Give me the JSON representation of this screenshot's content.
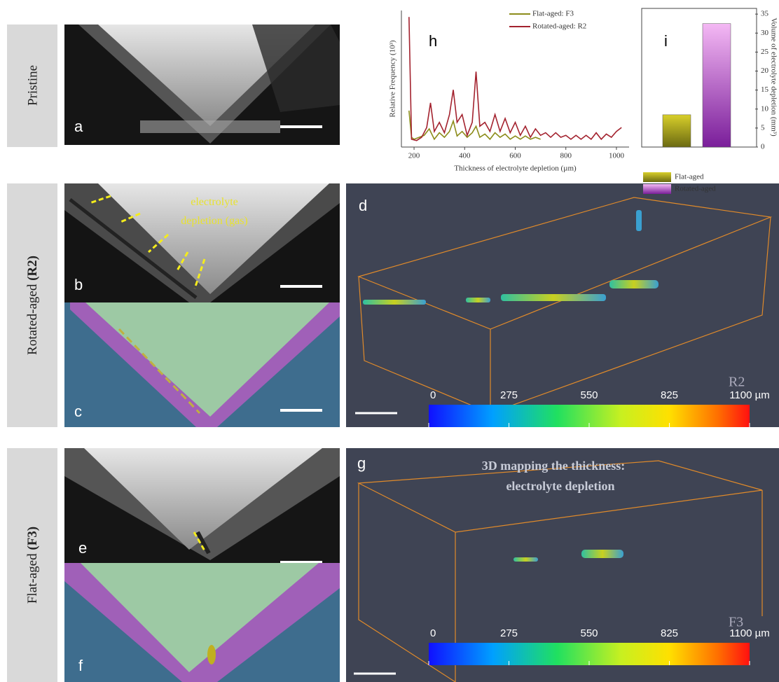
{
  "row_labels": [
    {
      "text": "Pristine"
    },
    {
      "text": "Rotated-aged",
      "tag": "(R2)"
    },
    {
      "text": "Flat-aged",
      "tag": "(F3)"
    }
  ],
  "panels": {
    "a": "a",
    "b": "b",
    "c": "c",
    "d": "d",
    "e": "e",
    "f": "f",
    "g": "g"
  },
  "annotations": {
    "gas": [
      "electrolyte",
      "depletion (gas)"
    ],
    "mapping": [
      "3D mapping the thickness:",
      "electrolyte depletion"
    ],
    "d_sample": "R2",
    "g_sample": "F3"
  },
  "colorbar": {
    "lim": [
      0,
      1100
    ],
    "ticks": [
      0,
      275,
      550,
      825,
      {
        "value": 1100,
        "label": "1100 µm"
      }
    ]
  },
  "chart_data": [
    {
      "type": "line",
      "panel": "h",
      "xlabel": "Thickness of electrolyte depletion (µm)",
      "ylabel": "Relative Frequency (10³)",
      "xlim": [
        150,
        1050
      ],
      "xticks": [
        200,
        400,
        600,
        800,
        1000
      ],
      "ylim": [
        0,
        10.5
      ],
      "legend": "top-right",
      "series": [
        {
          "name": "Flat-aged: F3",
          "color": "#8c8c1a",
          "x": [
            180,
            190,
            200,
            220,
            240,
            260,
            280,
            300,
            320,
            340,
            355,
            370,
            390,
            410,
            430,
            445,
            460,
            480,
            500,
            520,
            540,
            560,
            580,
            600,
            620,
            640,
            660,
            680,
            700
          ],
          "values": [
            2.8,
            0.75,
            0.6,
            0.75,
            0.9,
            1.4,
            0.6,
            1.1,
            0.75,
            1.2,
            2.0,
            0.85,
            1.2,
            0.75,
            1.1,
            1.6,
            0.75,
            1.0,
            0.6,
            1.1,
            0.75,
            1.0,
            0.6,
            0.85,
            0.6,
            0.85,
            0.6,
            0.75,
            0.6
          ]
        },
        {
          "name": "Rotated-aged: R2",
          "color": "#a3222e",
          "x": [
            180,
            190,
            210,
            230,
            250,
            265,
            280,
            300,
            320,
            340,
            355,
            370,
            390,
            410,
            430,
            445,
            460,
            480,
            500,
            520,
            540,
            560,
            580,
            600,
            620,
            640,
            660,
            680,
            700,
            720,
            740,
            760,
            780,
            800,
            820,
            840,
            860,
            880,
            900,
            920,
            940,
            960,
            980,
            1000,
            1020
          ],
          "values": [
            10,
            0.6,
            0.5,
            0.75,
            1.5,
            3.4,
            1.2,
            1.9,
            1.1,
            2.5,
            4.4,
            1.9,
            2.5,
            0.9,
            1.9,
            5.8,
            1.6,
            1.9,
            1.2,
            2.5,
            1.2,
            2.2,
            1.1,
            1.9,
            0.9,
            1.6,
            0.75,
            1.4,
            0.9,
            1.1,
            0.75,
            1.1,
            0.75,
            0.9,
            0.6,
            0.9,
            0.6,
            0.9,
            0.6,
            1.1,
            0.6,
            1.0,
            0.75,
            1.2,
            1.5
          ]
        }
      ]
    },
    {
      "type": "bar",
      "panel": "i",
      "ylabel": "Volume of electrolyte depletion (mm³)",
      "categories": [
        "Flat-aged",
        "Rotated-aged"
      ],
      "values": [
        8.5,
        32.5
      ],
      "colors": [
        [
          "#d8cf2a",
          "#6b6a12"
        ],
        [
          "#f4b8f4",
          "#7a1e9a"
        ]
      ],
      "ylim": [
        0,
        36.5
      ],
      "yticks": [
        0,
        5,
        10,
        15,
        20,
        25,
        30,
        35
      ],
      "yaxis_side": "right"
    }
  ]
}
